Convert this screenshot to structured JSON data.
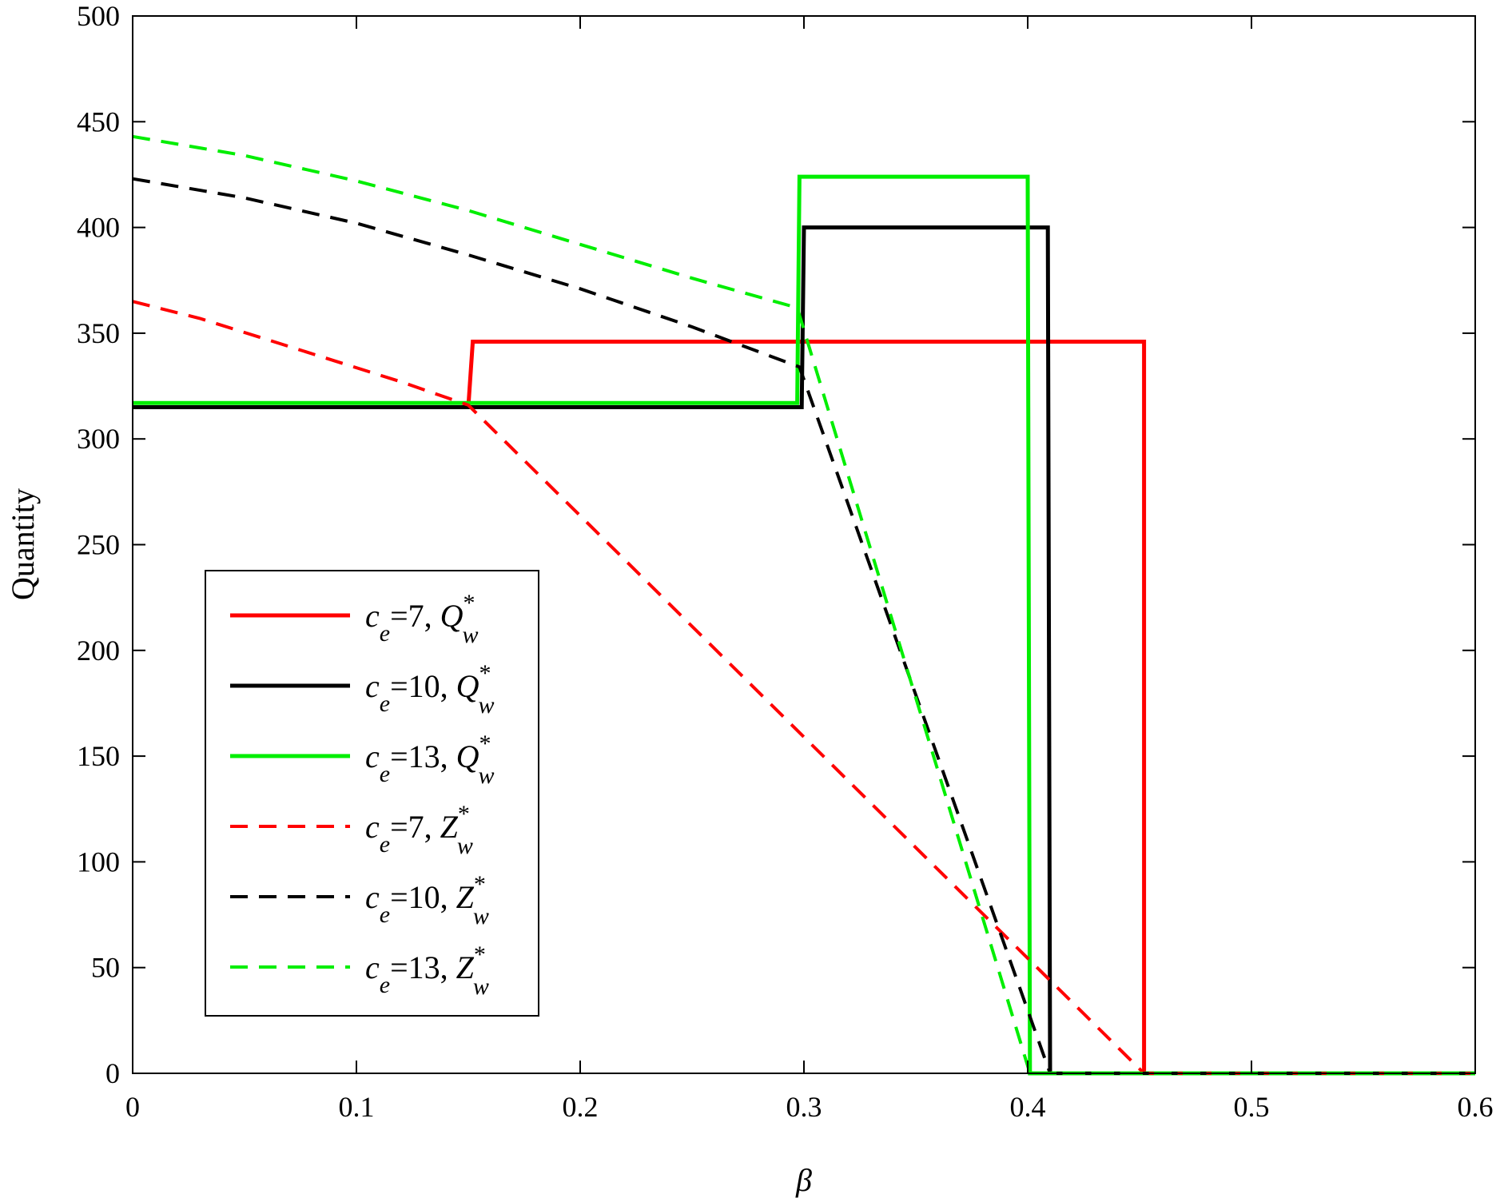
{
  "chart_data": {
    "type": "line",
    "title": "",
    "xlabel": "β",
    "ylabel": "Quantity",
    "xlim": [
      0,
      0.6
    ],
    "ylim": [
      0,
      500
    ],
    "xticks": [
      "0",
      "0.1",
      "0.2",
      "0.3",
      "0.4",
      "0.5",
      "0.6"
    ],
    "yticks": [
      "0",
      "50",
      "100",
      "150",
      "200",
      "250",
      "300",
      "350",
      "400",
      "450",
      "500"
    ],
    "grid": false,
    "legend_position": "lower-left",
    "series": [
      {
        "name": "c_e=7, Q_w^*",
        "color": "#ff0000",
        "dash": "solid",
        "legend": {
          "var": "c",
          "sub": "e",
          "eq": "=7, ",
          "sym": "Q",
          "sup": "*",
          "sub2": "w"
        },
        "x": [
          0,
          0.15,
          0.152,
          0.452,
          0.452,
          0.6
        ],
        "y": [
          315,
          315,
          346,
          346,
          0,
          0
        ]
      },
      {
        "name": "c_e=10, Q_w^*",
        "color": "#000000",
        "dash": "solid",
        "legend": {
          "var": "c",
          "sub": "e",
          "eq": "=10, ",
          "sym": "Q",
          "sup": "*",
          "sub2": "w"
        },
        "x": [
          0,
          0.299,
          0.3,
          0.409,
          0.41,
          0.6
        ],
        "y": [
          315,
          315,
          400,
          400,
          0,
          0
        ]
      },
      {
        "name": "c_e=13, Q_w^*",
        "color": "#00ee00",
        "dash": "solid",
        "legend": {
          "var": "c",
          "sub": "e",
          "eq": "=13, ",
          "sym": "Q",
          "sup": "*",
          "sub2": "w"
        },
        "x": [
          0,
          0.297,
          0.298,
          0.4,
          0.401,
          0.6
        ],
        "y": [
          317,
          317,
          424,
          424,
          0,
          0
        ]
      },
      {
        "name": "c_e=7, Z_w^*",
        "color": "#ff0000",
        "dash": "dashed",
        "legend": {
          "var": "c",
          "sub": "e",
          "eq": "=7, ",
          "sym": "Z",
          "sup": "*",
          "sub2": "w"
        },
        "x": [
          0,
          0.03,
          0.06,
          0.09,
          0.12,
          0.15,
          0.452,
          0.6
        ],
        "y": [
          365,
          357,
          347,
          337,
          327,
          316,
          0,
          0
        ]
      },
      {
        "name": "c_e=10, Z_w^*",
        "color": "#000000",
        "dash": "dashed",
        "legend": {
          "var": "c",
          "sub": "e",
          "eq": "=10, ",
          "sym": "Z",
          "sup": "*",
          "sub2": "w"
        },
        "x": [
          0,
          0.05,
          0.1,
          0.15,
          0.2,
          0.25,
          0.298,
          0.41,
          0.6
        ],
        "y": [
          423,
          414,
          402,
          387,
          371,
          353,
          334,
          0,
          0
        ]
      },
      {
        "name": "c_e=13, Z_w^*",
        "color": "#00ee00",
        "dash": "dashed",
        "legend": {
          "var": "c",
          "sub": "e",
          "eq": "=13, ",
          "sym": "Z",
          "sup": "*",
          "sub2": "w"
        },
        "x": [
          0,
          0.05,
          0.1,
          0.15,
          0.2,
          0.25,
          0.297,
          0.401,
          0.6
        ],
        "y": [
          443,
          434,
          422,
          408,
          392,
          376,
          362,
          0,
          0
        ]
      }
    ]
  }
}
